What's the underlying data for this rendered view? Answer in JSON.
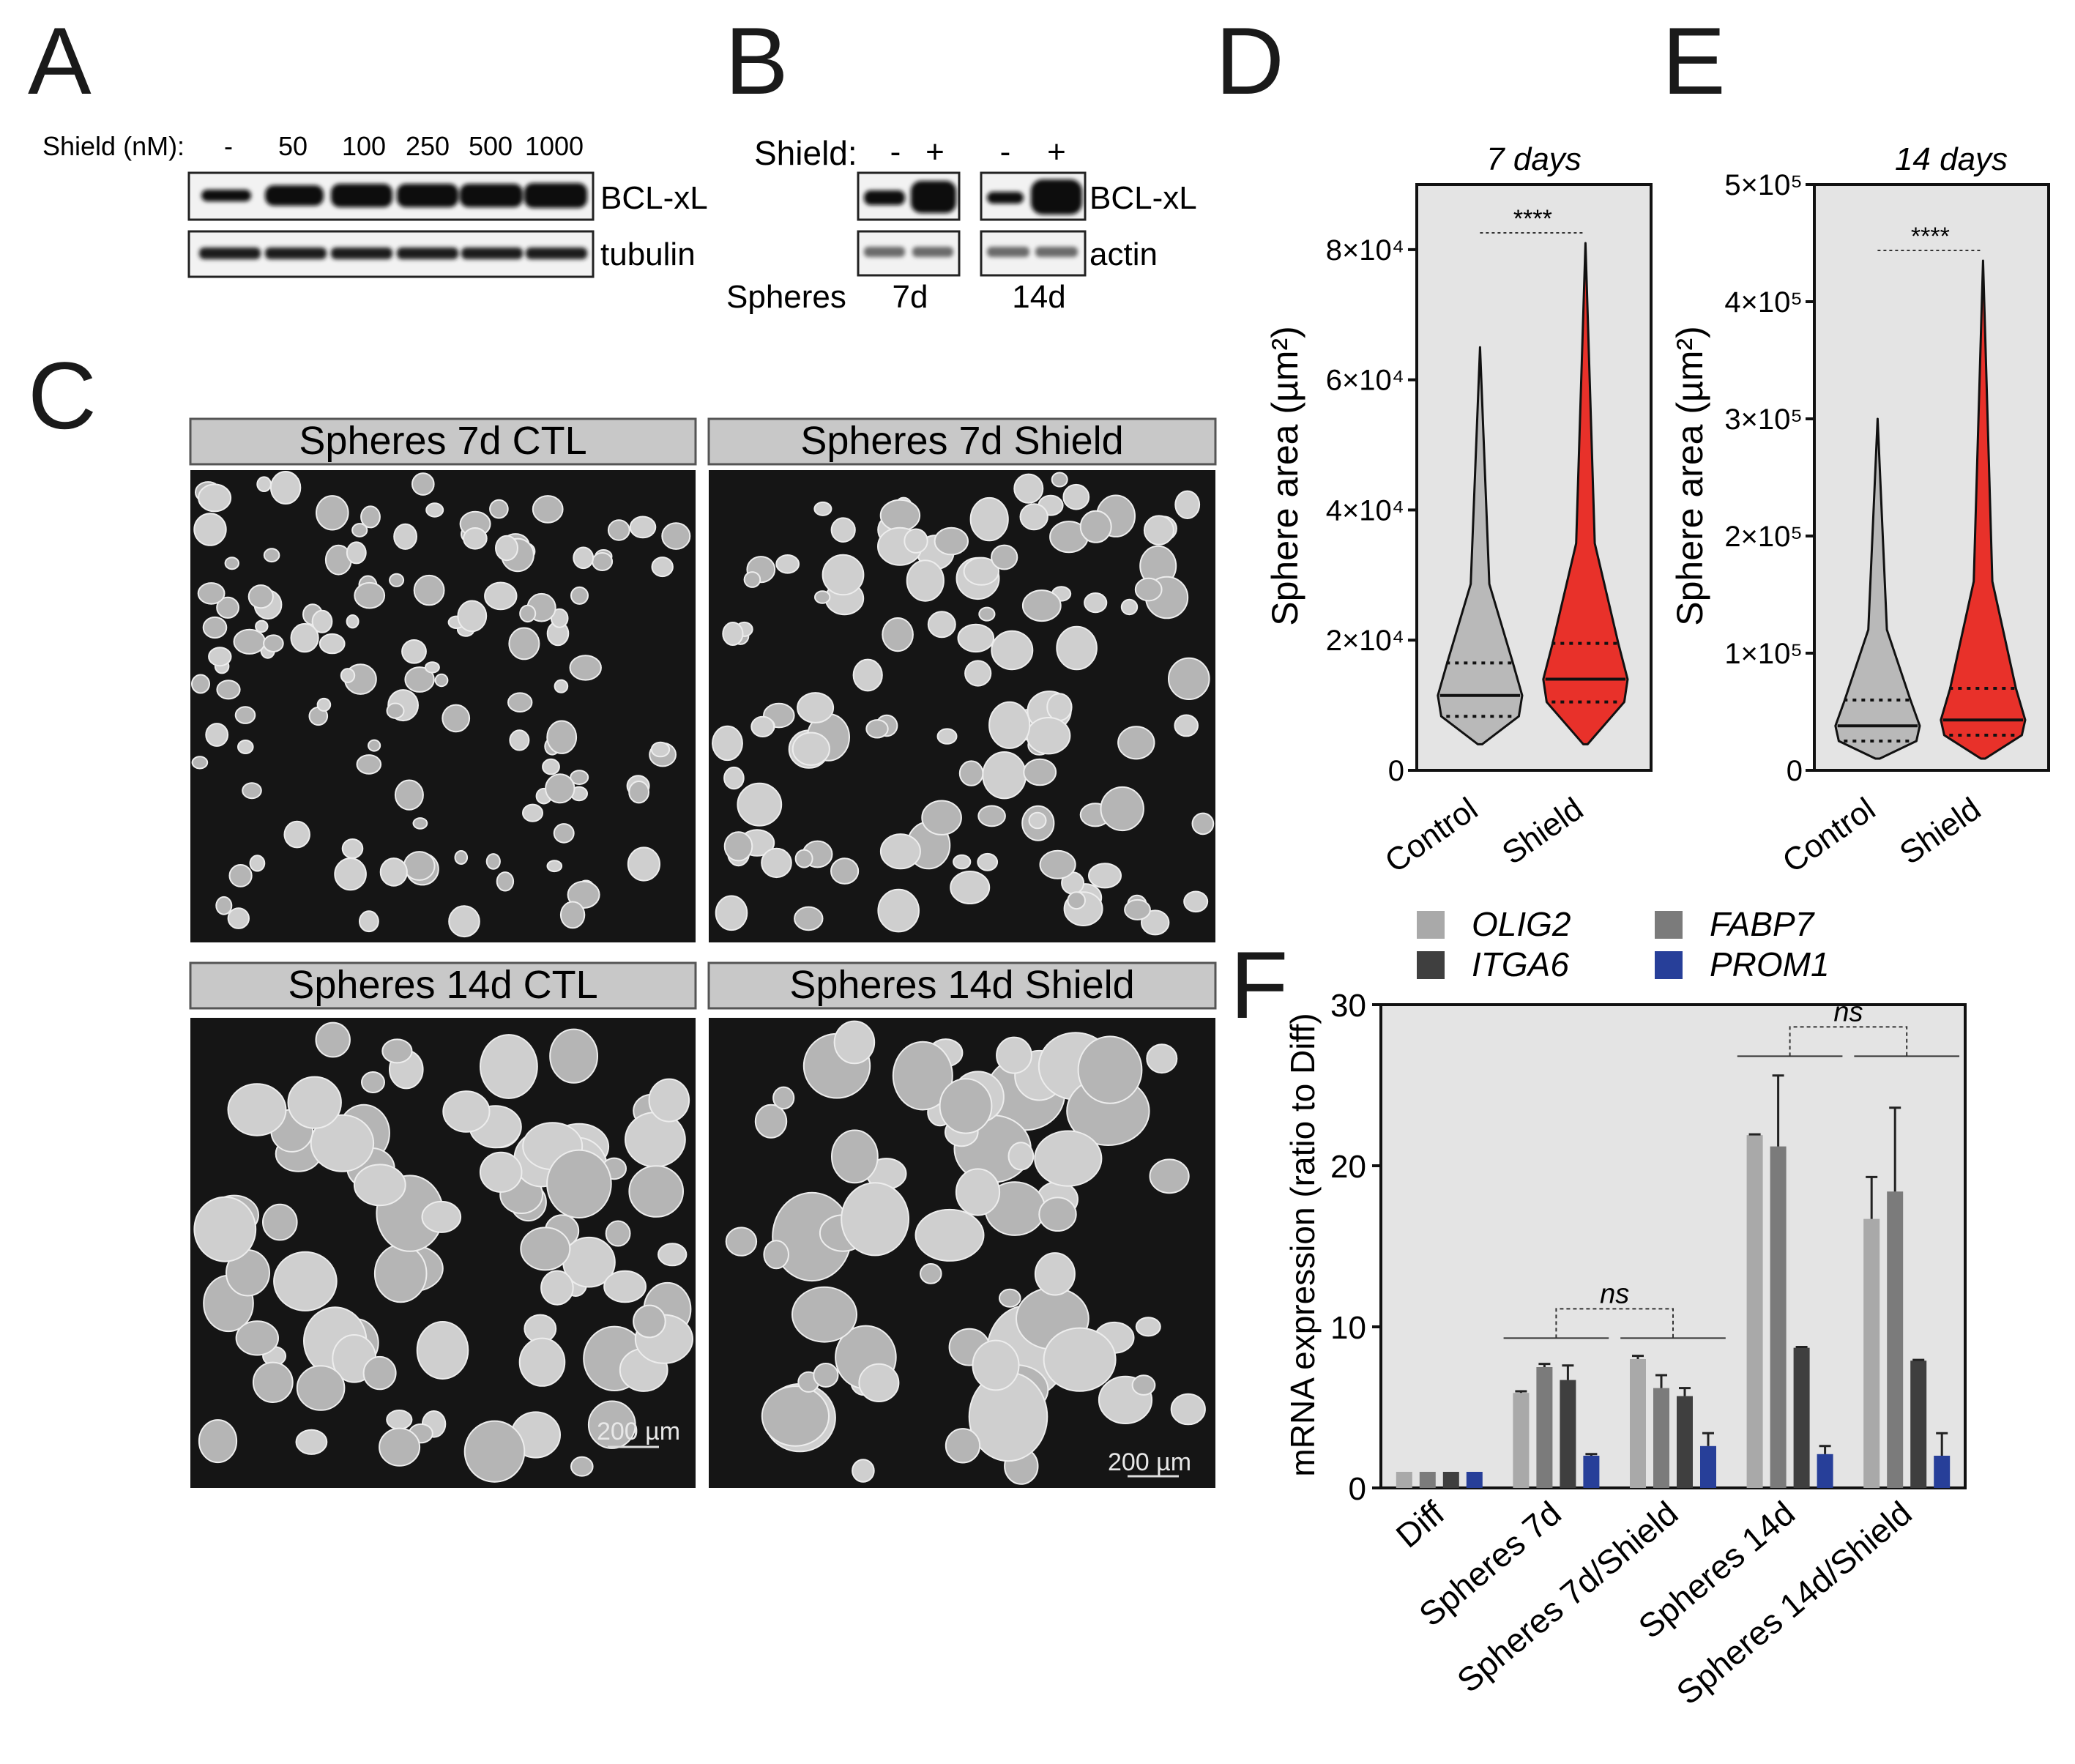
{
  "panel_letters": {
    "A": "A",
    "B": "B",
    "C": "C",
    "D": "D",
    "E": "E",
    "F": "F"
  },
  "panel_A": {
    "shield_label": "Shield (nM):",
    "concentrations": [
      "-",
      "50",
      "100",
      "250",
      "500",
      "1000"
    ],
    "band_labels": {
      "bclxl": "BCL-xL",
      "tubulin": "tubulin"
    }
  },
  "panel_B": {
    "shield_label": "Shield:",
    "lanes": [
      "-",
      "+",
      "-",
      "+"
    ],
    "band_labels": {
      "bclxl": "BCL-xL",
      "actin": "actin"
    },
    "spheres_label": "Spheres",
    "timepoints": [
      "7d",
      "14d"
    ]
  },
  "panel_C": {
    "images": [
      {
        "title": "Spheres 7d CTL"
      },
      {
        "title": "Spheres 7d Shield"
      },
      {
        "title": "Spheres 14d CTL",
        "scale_bar": "200 µm"
      },
      {
        "title": "Spheres 14d Shield",
        "scale_bar": "200 µm"
      }
    ]
  },
  "colors": {
    "control": "#b9b9b9",
    "shield": "#e8312a",
    "olig2": "#a9a9a9",
    "fabp7": "#7b7b7b",
    "itga6": "#3f3f3f",
    "prom1": "#273f99",
    "plot_bg": "#e4e4e4"
  },
  "chart_data": [
    {
      "type": "violin",
      "panel": "D",
      "title": "7 days",
      "ylabel": "Sphere area (µm²)",
      "categories": [
        "Control",
        "Shield"
      ],
      "ylim": [
        0,
        90000
      ],
      "yticks": [
        {
          "v": 0,
          "t": "0"
        },
        {
          "v": 20000,
          "t": "2×10⁴"
        },
        {
          "v": 40000,
          "t": "4×10⁴"
        },
        {
          "v": 60000,
          "t": "6×10⁴"
        },
        {
          "v": 80000,
          "t": "8×10⁴"
        }
      ],
      "significance": "****",
      "series": [
        {
          "name": "Control",
          "min": 4000,
          "q1": 8300,
          "median": 11500,
          "q3": 16500,
          "max": 65000
        },
        {
          "name": "Shield",
          "min": 4000,
          "q1": 10500,
          "median": 14000,
          "q3": 19500,
          "max": 81000
        }
      ]
    },
    {
      "type": "violin",
      "panel": "E",
      "title": "14 days",
      "ylabel": "Sphere area (µm²)",
      "categories": [
        "Control",
        "Shield"
      ],
      "ylim": [
        0,
        500000
      ],
      "yticks": [
        {
          "v": 0,
          "t": "0"
        },
        {
          "v": 100000,
          "t": "1×10⁵"
        },
        {
          "v": 200000,
          "t": "2×10⁵"
        },
        {
          "v": 300000,
          "t": "3×10⁵"
        },
        {
          "v": 400000,
          "t": "4×10⁵"
        },
        {
          "v": 500000,
          "t": "5×10⁵"
        }
      ],
      "significance": "****",
      "series": [
        {
          "name": "Control",
          "min": 10000,
          "q1": 25000,
          "median": 38000,
          "q3": 60000,
          "max": 300000
        },
        {
          "name": "Shield",
          "min": 10000,
          "q1": 30000,
          "median": 43000,
          "q3": 70000,
          "max": 435000
        }
      ]
    },
    {
      "type": "bar",
      "panel": "F",
      "ylabel": "mRNA expression (ratio to Diff)",
      "categories": [
        "Diff",
        "Spheres 7d",
        "Spheres 7d/Shield",
        "Spheres 14d",
        "Spheres 14d/Shield"
      ],
      "ylim": [
        0,
        30
      ],
      "yticks": [
        0,
        10,
        20,
        30
      ],
      "legend_position": "top",
      "significance": [
        "ns",
        "ns"
      ],
      "series": [
        {
          "name": "OLIG2",
          "values": [
            1,
            5.9,
            8.0,
            21.9,
            16.7
          ],
          "errors": [
            0,
            0.1,
            0.2,
            0.05,
            2.6
          ]
        },
        {
          "name": "FABP7",
          "values": [
            1,
            7.5,
            6.2,
            21.2,
            18.4
          ],
          "errors": [
            0,
            0.2,
            0.8,
            4.4,
            5.2
          ]
        },
        {
          "name": "ITGA6",
          "values": [
            1,
            6.7,
            5.7,
            8.7,
            7.9
          ],
          "errors": [
            0,
            0.9,
            0.5,
            0.05,
            0.05
          ]
        },
        {
          "name": "PROM1",
          "values": [
            1,
            2.0,
            2.6,
            2.1,
            2.0
          ],
          "errors": [
            0,
            0.1,
            0.8,
            0.5,
            1.4
          ]
        }
      ]
    }
  ]
}
